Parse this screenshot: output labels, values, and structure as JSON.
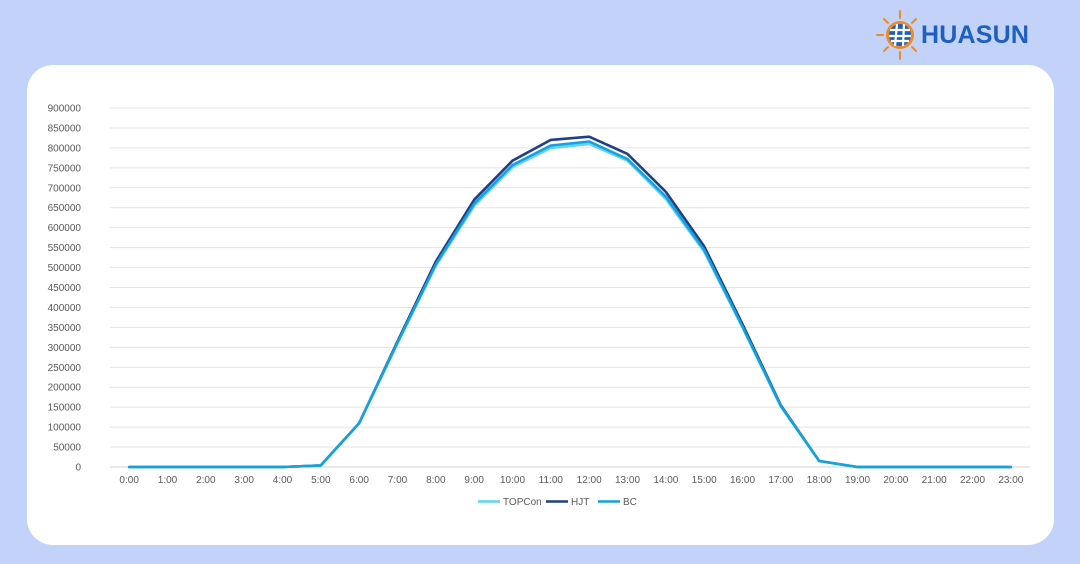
{
  "brand": {
    "logo_text": "HUASUN",
    "icon": "sun-globe-icon",
    "text_color": "#1f5fbf",
    "sun_color": "#f08a24"
  },
  "colors": {
    "background": "#c3d2f8",
    "card": "#ffffff",
    "gridline": "#e3e3e3"
  },
  "chart_data": {
    "type": "line",
    "title": "",
    "xlabel": "",
    "ylabel": "",
    "ylim": [
      0,
      900000
    ],
    "y_ticks": [
      "0",
      "50000",
      "100000",
      "150000",
      "200000",
      "250000",
      "300000",
      "350000",
      "400000",
      "450000",
      "500000",
      "550000",
      "600000",
      "650000",
      "700000",
      "750000",
      "800000",
      "850000",
      "900000"
    ],
    "x": [
      "0:00",
      "1:00",
      "2:00",
      "3:00",
      "4:00",
      "5:00",
      "6:00",
      "7:00",
      "8:00",
      "9:00",
      "10:00",
      "11:00",
      "12:00",
      "13:00",
      "14:00",
      "15:00",
      "16:00",
      "17:00",
      "18:00",
      "19:00",
      "20:00",
      "21:00",
      "22:00",
      "23:00"
    ],
    "grid": true,
    "legend_position": "bottom",
    "series": [
      {
        "name": "TOPCon",
        "color": "#5fd3f3",
        "values": [
          0,
          0,
          0,
          0,
          0,
          4000,
          110000,
          310000,
          505000,
          655000,
          752000,
          800000,
          810000,
          768000,
          672000,
          540000,
          350000,
          152000,
          15000,
          0,
          0,
          0,
          0,
          0
        ]
      },
      {
        "name": "HJT",
        "color": "#1f3f86",
        "values": [
          0,
          0,
          0,
          0,
          0,
          4000,
          110000,
          315000,
          515000,
          670000,
          768000,
          820000,
          828000,
          785000,
          690000,
          553000,
          358000,
          155000,
          15000,
          0,
          0,
          0,
          0,
          0
        ]
      },
      {
        "name": "BC",
        "color": "#15a2dc",
        "values": [
          0,
          0,
          0,
          0,
          0,
          4000,
          110000,
          312000,
          508000,
          660000,
          757000,
          806000,
          816000,
          772000,
          678000,
          544000,
          352000,
          153000,
          15000,
          0,
          0,
          0,
          0,
          0
        ]
      }
    ]
  }
}
